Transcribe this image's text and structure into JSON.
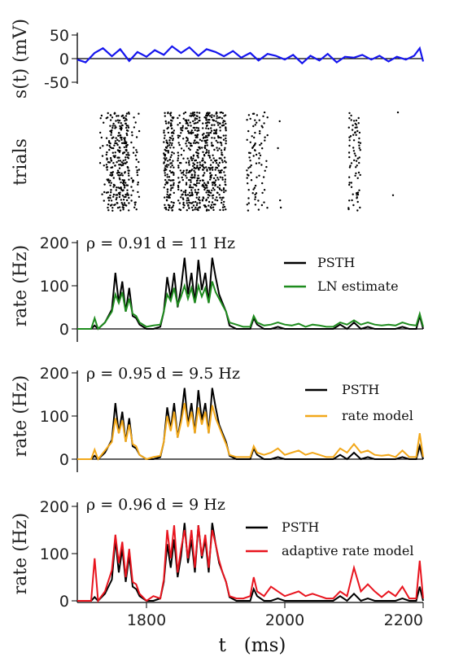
{
  "chart_data": [
    {
      "type": "line",
      "ylabel": "s(t)  (mV)",
      "ylim": [
        -50,
        50
      ],
      "y_ticks": [
        "50",
        "0",
        "-50"
      ],
      "xlim": [
        1700,
        2200
      ],
      "series": [
        {
          "color": "#1515ee",
          "x": [
            1700,
            1712,
            1725,
            1737,
            1750,
            1762,
            1775,
            1787,
            1800,
            1812,
            1825,
            1837,
            1850,
            1862,
            1875,
            1887,
            1900,
            1912,
            1925,
            1937,
            1950,
            1962,
            1975,
            1987,
            2000,
            2012,
            2025,
            2037,
            2050,
            2062,
            2075,
            2087,
            2100,
            2112,
            2125,
            2137,
            2150,
            2162,
            2175,
            2187,
            2195,
            2200
          ],
          "values": [
            -2,
            -8,
            12,
            22,
            5,
            20,
            -5,
            14,
            4,
            18,
            8,
            26,
            12,
            24,
            6,
            20,
            14,
            5,
            16,
            2,
            12,
            -4,
            10,
            6,
            -2,
            8,
            -10,
            6,
            -4,
            10,
            -8,
            4,
            2,
            8,
            -2,
            6,
            -6,
            4,
            -2,
            6,
            22,
            -6
          ]
        }
      ]
    },
    {
      "type": "scatter",
      "ylabel": "trials",
      "xlim": [
        1700,
        2200
      ],
      "bands": [
        [
          1720,
          1726,
          0.15
        ],
        [
          1733,
          1740,
          0.2
        ],
        [
          1742,
          1760,
          0.7
        ],
        [
          1760,
          1775,
          0.85
        ],
        [
          1778,
          1790,
          0.3
        ],
        [
          1795,
          1800,
          0.1
        ],
        [
          1825,
          1840,
          0.85
        ],
        [
          1845,
          1855,
          0.5
        ],
        [
          1856,
          1878,
          0.9
        ],
        [
          1880,
          1895,
          0.85
        ],
        [
          1895,
          1915,
          0.7
        ],
        [
          1918,
          1925,
          0.15
        ],
        [
          1945,
          1960,
          0.3
        ],
        [
          1961,
          1975,
          0.2
        ],
        [
          1990,
          1998,
          0.15
        ],
        [
          2012,
          2018,
          0.15
        ],
        [
          2060,
          2066,
          0.1
        ],
        [
          2092,
          2110,
          0.35
        ],
        [
          2155,
          2165,
          0.12
        ],
        [
          2187,
          2192,
          0.12
        ]
      ]
    },
    {
      "type": "line",
      "ylabel": "rate (Hz)",
      "ylim": [
        0,
        200
      ],
      "y_ticks": [
        "200",
        "100",
        "0"
      ],
      "xlim": [
        1700,
        2200
      ],
      "annotation_rho": "ρ = 0.91",
      "annotation_d": "d = 11 Hz",
      "series": [
        {
          "name": "PSTH",
          "color": "#000000",
          "x": [
            1700,
            1720,
            1725,
            1730,
            1740,
            1750,
            1755,
            1760,
            1765,
            1770,
            1775,
            1780,
            1785,
            1790,
            1800,
            1810,
            1820,
            1825,
            1830,
            1835,
            1840,
            1845,
            1850,
            1855,
            1860,
            1865,
            1870,
            1875,
            1880,
            1885,
            1890,
            1895,
            1900,
            1905,
            1910,
            1915,
            1920,
            1930,
            1940,
            1950,
            1955,
            1960,
            1970,
            1980,
            1990,
            2000,
            2010,
            2020,
            2030,
            2040,
            2050,
            2060,
            2070,
            2080,
            2090,
            2100,
            2110,
            2120,
            2130,
            2140,
            2150,
            2160,
            2170,
            2180,
            2190,
            2195,
            2200
          ],
          "values": [
            0,
            0,
            8,
            0,
            15,
            45,
            130,
            60,
            110,
            40,
            95,
            30,
            25,
            10,
            0,
            0,
            5,
            40,
            120,
            70,
            130,
            50,
            95,
            165,
            80,
            130,
            60,
            160,
            90,
            130,
            60,
            165,
            120,
            80,
            60,
            40,
            8,
            0,
            0,
            0,
            25,
            10,
            0,
            0,
            5,
            0,
            0,
            0,
            0,
            0,
            0,
            0,
            0,
            10,
            0,
            15,
            0,
            5,
            0,
            0,
            0,
            0,
            5,
            0,
            0,
            30,
            0
          ]
        },
        {
          "name": "LN estimate",
          "color": "#1e8c1e",
          "x": [
            1700,
            1720,
            1725,
            1730,
            1740,
            1750,
            1755,
            1760,
            1765,
            1770,
            1775,
            1780,
            1785,
            1790,
            1800,
            1810,
            1820,
            1825,
            1830,
            1835,
            1840,
            1845,
            1850,
            1855,
            1860,
            1865,
            1870,
            1875,
            1880,
            1885,
            1890,
            1895,
            1900,
            1905,
            1910,
            1915,
            1920,
            1930,
            1940,
            1950,
            1955,
            1960,
            1970,
            1980,
            1990,
            2000,
            2010,
            2020,
            2030,
            2040,
            2050,
            2060,
            2070,
            2080,
            2090,
            2100,
            2110,
            2120,
            2130,
            2140,
            2150,
            2160,
            2170,
            2180,
            2190,
            2195,
            2200
          ],
          "values": [
            0,
            0,
            25,
            0,
            15,
            40,
            80,
            60,
            85,
            40,
            70,
            35,
            30,
            15,
            5,
            8,
            10,
            40,
            80,
            65,
            95,
            55,
            75,
            100,
            70,
            95,
            60,
            100,
            75,
            95,
            60,
            110,
            85,
            70,
            55,
            40,
            15,
            10,
            5,
            5,
            30,
            15,
            8,
            10,
            15,
            10,
            8,
            12,
            5,
            10,
            8,
            5,
            5,
            15,
            10,
            20,
            10,
            15,
            10,
            8,
            10,
            8,
            15,
            10,
            8,
            35,
            5
          ]
        }
      ]
    },
    {
      "type": "line",
      "ylabel": "rate (Hz)",
      "ylim": [
        0,
        200
      ],
      "y_ticks": [
        "200",
        "100",
        "0"
      ],
      "xlim": [
        1700,
        2200
      ],
      "annotation_rho": "ρ = 0.95",
      "annotation_d": "d = 9.5 Hz",
      "series": [
        {
          "name": "PSTH",
          "color": "#000000",
          "x": [
            1700,
            1720,
            1725,
            1730,
            1740,
            1750,
            1755,
            1760,
            1765,
            1770,
            1775,
            1780,
            1785,
            1790,
            1800,
            1810,
            1820,
            1825,
            1830,
            1835,
            1840,
            1845,
            1850,
            1855,
            1860,
            1865,
            1870,
            1875,
            1880,
            1885,
            1890,
            1895,
            1900,
            1905,
            1910,
            1915,
            1920,
            1930,
            1940,
            1950,
            1955,
            1960,
            1970,
            1980,
            1990,
            2000,
            2010,
            2020,
            2030,
            2040,
            2050,
            2060,
            2070,
            2080,
            2090,
            2100,
            2110,
            2120,
            2130,
            2140,
            2150,
            2160,
            2170,
            2180,
            2190,
            2195,
            2200
          ],
          "values": [
            0,
            0,
            8,
            0,
            15,
            45,
            130,
            60,
            110,
            40,
            95,
            30,
            25,
            10,
            0,
            0,
            5,
            40,
            120,
            70,
            130,
            50,
            95,
            165,
            80,
            130,
            60,
            160,
            90,
            130,
            60,
            165,
            120,
            80,
            60,
            40,
            8,
            0,
            0,
            0,
            25,
            10,
            0,
            0,
            5,
            0,
            0,
            0,
            0,
            0,
            0,
            0,
            0,
            10,
            0,
            15,
            0,
            5,
            0,
            0,
            0,
            0,
            5,
            0,
            0,
            30,
            0
          ]
        },
        {
          "name": "rate model",
          "color": "#f2a81a",
          "x": [
            1700,
            1720,
            1725,
            1730,
            1740,
            1750,
            1755,
            1760,
            1765,
            1770,
            1775,
            1780,
            1785,
            1790,
            1800,
            1810,
            1820,
            1825,
            1830,
            1835,
            1840,
            1845,
            1850,
            1855,
            1860,
            1865,
            1870,
            1875,
            1880,
            1885,
            1890,
            1895,
            1900,
            1905,
            1910,
            1915,
            1920,
            1930,
            1940,
            1950,
            1955,
            1960,
            1970,
            1980,
            1990,
            2000,
            2010,
            2020,
            2030,
            2040,
            2050,
            2060,
            2070,
            2080,
            2090,
            2100,
            2110,
            2120,
            2130,
            2140,
            2150,
            2160,
            2170,
            2180,
            2190,
            2195,
            2200
          ],
          "values": [
            0,
            0,
            22,
            0,
            20,
            40,
            95,
            60,
            90,
            40,
            80,
            35,
            30,
            10,
            0,
            5,
            8,
            40,
            100,
            65,
            110,
            50,
            85,
            130,
            75,
            110,
            60,
            120,
            80,
            110,
            60,
            125,
            95,
            75,
            55,
            35,
            10,
            5,
            5,
            5,
            30,
            15,
            10,
            15,
            25,
            10,
            15,
            20,
            10,
            15,
            10,
            5,
            5,
            25,
            15,
            35,
            15,
            20,
            10,
            8,
            10,
            5,
            20,
            5,
            5,
            60,
            5
          ]
        }
      ]
    },
    {
      "type": "line",
      "ylabel": "rate (Hz)",
      "ylim": [
        0,
        200
      ],
      "y_ticks": [
        "200",
        "100",
        "0"
      ],
      "xlim": [
        1700,
        2200
      ],
      "x_ticks": [
        "1800",
        "2000",
        "2200"
      ],
      "xlabel": "t   (ms)",
      "annotation_rho": "ρ = 0.96",
      "annotation_d": "d = 9 Hz",
      "series": [
        {
          "name": "PSTH",
          "color": "#000000",
          "x": [
            1700,
            1720,
            1725,
            1730,
            1740,
            1750,
            1755,
            1760,
            1765,
            1770,
            1775,
            1780,
            1785,
            1790,
            1800,
            1810,
            1820,
            1825,
            1830,
            1835,
            1840,
            1845,
            1850,
            1855,
            1860,
            1865,
            1870,
            1875,
            1880,
            1885,
            1890,
            1895,
            1900,
            1905,
            1910,
            1915,
            1920,
            1930,
            1940,
            1950,
            1955,
            1960,
            1970,
            1980,
            1990,
            2000,
            2010,
            2020,
            2030,
            2040,
            2050,
            2060,
            2070,
            2080,
            2090,
            2100,
            2110,
            2120,
            2130,
            2140,
            2150,
            2160,
            2170,
            2180,
            2190,
            2195,
            2200
          ],
          "values": [
            0,
            0,
            8,
            0,
            15,
            45,
            130,
            60,
            110,
            40,
            95,
            30,
            25,
            10,
            0,
            0,
            5,
            40,
            120,
            70,
            130,
            50,
            95,
            165,
            80,
            130,
            60,
            160,
            90,
            130,
            60,
            165,
            120,
            80,
            60,
            40,
            8,
            0,
            0,
            0,
            25,
            10,
            0,
            0,
            5,
            0,
            0,
            0,
            0,
            0,
            0,
            0,
            0,
            10,
            0,
            15,
            0,
            5,
            0,
            0,
            0,
            0,
            5,
            0,
            0,
            30,
            0
          ]
        },
        {
          "name": "adaptive rate model",
          "color": "#e8141e",
          "x": [
            1700,
            1720,
            1725,
            1730,
            1740,
            1750,
            1755,
            1760,
            1765,
            1770,
            1775,
            1780,
            1785,
            1790,
            1800,
            1810,
            1820,
            1825,
            1830,
            1835,
            1840,
            1845,
            1850,
            1855,
            1860,
            1865,
            1870,
            1875,
            1880,
            1885,
            1890,
            1895,
            1900,
            1905,
            1910,
            1915,
            1920,
            1930,
            1940,
            1950,
            1955,
            1960,
            1970,
            1980,
            1990,
            2000,
            2010,
            2020,
            2030,
            2040,
            2050,
            2060,
            2070,
            2080,
            2090,
            2100,
            2110,
            2120,
            2130,
            2140,
            2150,
            2160,
            2170,
            2180,
            2190,
            2195,
            2200
          ],
          "values": [
            0,
            0,
            90,
            0,
            20,
            65,
            140,
            80,
            125,
            50,
            110,
            40,
            35,
            15,
            0,
            10,
            5,
            45,
            150,
            90,
            160,
            60,
            110,
            150,
            90,
            150,
            70,
            160,
            95,
            140,
            70,
            150,
            120,
            85,
            60,
            40,
            10,
            5,
            5,
            10,
            50,
            20,
            10,
            30,
            20,
            10,
            15,
            20,
            10,
            15,
            10,
            5,
            5,
            20,
            10,
            70,
            20,
            35,
            20,
            8,
            20,
            10,
            30,
            5,
            5,
            85,
            5
          ]
        }
      ]
    }
  ]
}
